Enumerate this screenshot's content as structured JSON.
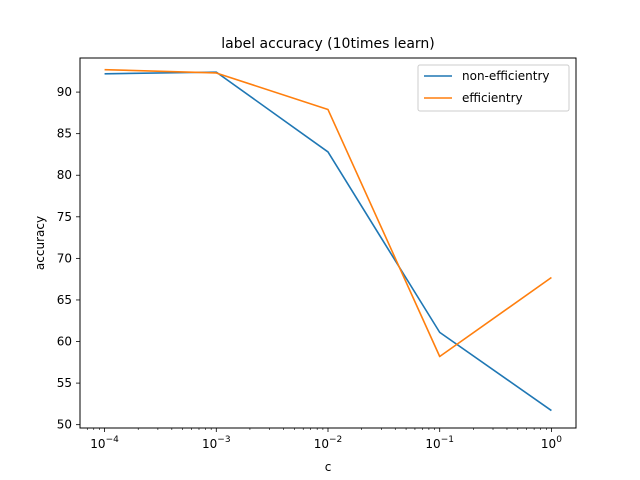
{
  "chart_data": {
    "type": "line",
    "title": "label accuracy (10times learn)",
    "xlabel": "c",
    "ylabel": "accuracy",
    "xscale": "log",
    "x": [
      0.0001,
      0.001,
      0.01,
      0.1,
      1
    ],
    "x_ticks": [
      {
        "value": 0.0001,
        "base": "10",
        "exp": "−4"
      },
      {
        "value": 0.001,
        "base": "10",
        "exp": "−3"
      },
      {
        "value": 0.01,
        "base": "10",
        "exp": "−2"
      },
      {
        "value": 0.1,
        "base": "10",
        "exp": "−1"
      },
      {
        "value": 1,
        "base": "10",
        "exp": "0"
      }
    ],
    "y_ticks": [
      50,
      55,
      60,
      65,
      70,
      75,
      80,
      85,
      90
    ],
    "ylim": [
      49.6,
      94.1
    ],
    "xlim_exp": [
      -4.22,
      0.22
    ],
    "grid": false,
    "legend_position": "upper right",
    "series": [
      {
        "name": "non-efficientry",
        "color": "#1f77b4",
        "values": [
          92.2,
          92.4,
          82.8,
          61.1,
          51.7
        ]
      },
      {
        "name": "efficientry",
        "color": "#ff7f0e",
        "values": [
          92.7,
          92.3,
          87.9,
          58.2,
          67.7
        ]
      }
    ]
  }
}
